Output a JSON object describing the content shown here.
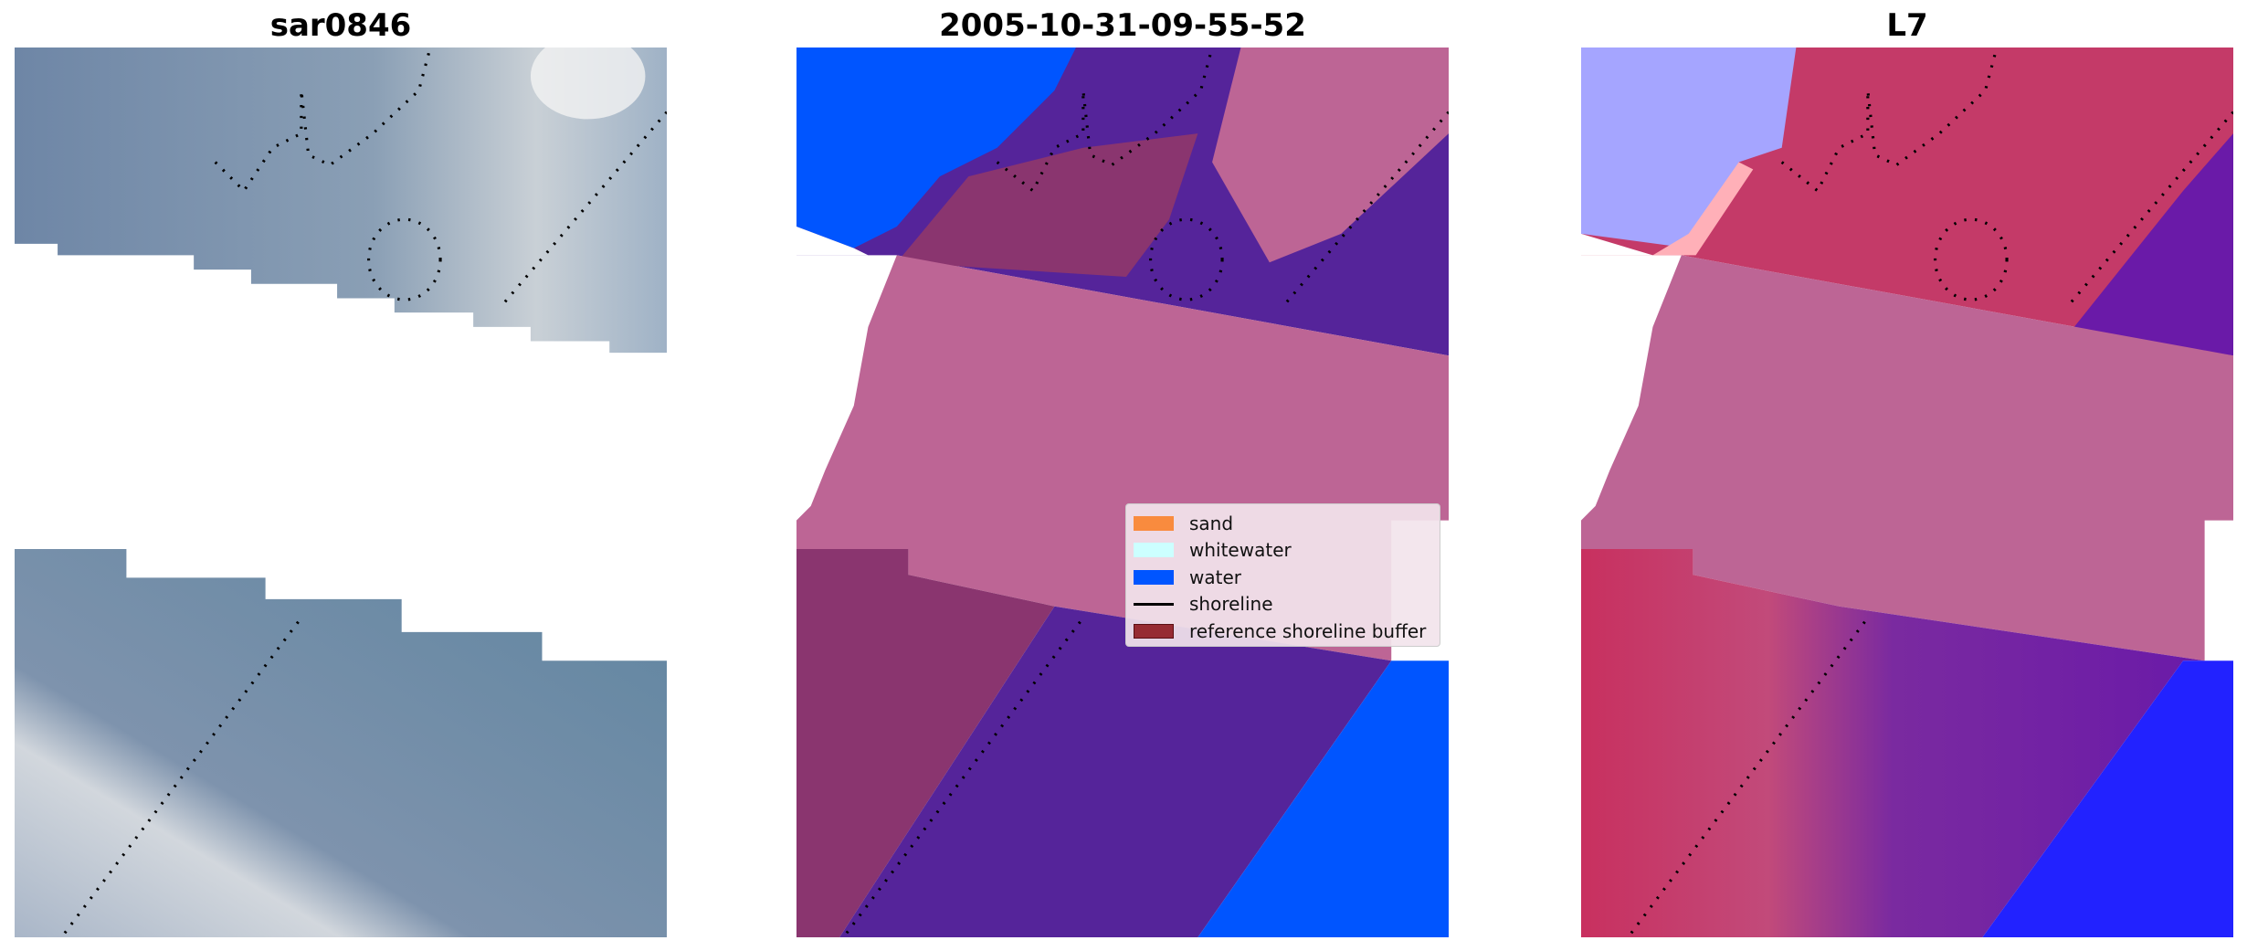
{
  "panels": [
    {
      "title": "sar0846"
    },
    {
      "title": "2005-10-31-09-55-52"
    },
    {
      "title": "L7"
    }
  ],
  "legend": {
    "placement": "center-right of middle panel",
    "items": [
      {
        "label": "sand",
        "color": "#f98b3e",
        "kind": "patch"
      },
      {
        "label": "whitewater",
        "color": "#ccffff",
        "kind": "patch"
      },
      {
        "label": "water",
        "color": "#0055ff",
        "kind": "patch"
      },
      {
        "label": "shoreline",
        "color": "#000000",
        "kind": "line"
      },
      {
        "label": "reference shoreline buffer",
        "color": "#962b33",
        "kind": "patch"
      }
    ]
  },
  "colors": {
    "sar_gray_blue": "#7d93ad",
    "sar_bright": "#d9dde3",
    "class_purple": "#55249a",
    "class_pink": "#bd6595",
    "class_mauve": "#8a356f",
    "class_water": "#0055ff",
    "l7_red": "#c8305f",
    "l7_purple": "#6a1aa8",
    "l7_blue": "#2222ff"
  }
}
